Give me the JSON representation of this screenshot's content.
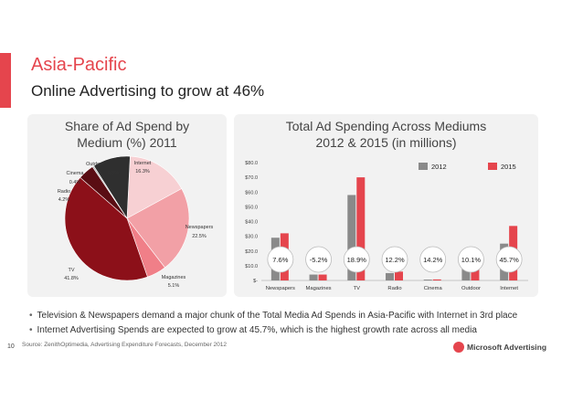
{
  "header": {
    "title": "Asia-Pacific",
    "subtitle": "Online Advertising to grow at 46%"
  },
  "colors": {
    "accent": "#e5454d",
    "panel": "#f2f2f2"
  },
  "chart_data": [
    {
      "type": "pie",
      "title_line1": "Share of Ad Spend by",
      "title_line2": "Medium (%) 2011",
      "slices": [
        {
          "label": "Internet",
          "value": 16.3,
          "value_label": "16.3%",
          "color": "#f7d0d3"
        },
        {
          "label": "Newspapers",
          "value": 22.5,
          "value_label": "22.5%",
          "color": "#f2a0a6"
        },
        {
          "label": "Magazines",
          "value": 5.1,
          "value_label": "5.1%",
          "color": "#f07f88"
        },
        {
          "label": "TV",
          "value": 41.8,
          "value_label": "41.8%",
          "color": "#8c1019"
        },
        {
          "label": "Radio",
          "value": 4.2,
          "value_label": "4.2%",
          "color": "#5a0d13"
        },
        {
          "label": "Cinema",
          "value": 0.4,
          "value_label": "0.4%",
          "color": "#b0b0b0"
        },
        {
          "label": "Outdoor",
          "value": 9.8,
          "value_label": "9.8%",
          "color": "#2f2f2f"
        }
      ]
    },
    {
      "type": "bar",
      "title_line1": "Total Ad Spending Across Mediums",
      "title_line2": "2012 & 2015 (in millions)",
      "categories": [
        "Newspapers",
        "Magazines",
        "TV",
        "Radio",
        "Cinema",
        "Outdoor",
        "Internet"
      ],
      "series": [
        {
          "name": "2012",
          "values": [
            29,
            4,
            58,
            5,
            0.6,
            10,
            25
          ],
          "color": "#8a8a8a"
        },
        {
          "name": "2015",
          "values": [
            32,
            4,
            70,
            6,
            0.7,
            11,
            37
          ],
          "color": "#e5454d"
        }
      ],
      "ylim": [
        0,
        80
      ],
      "yticks": [
        "$-",
        "$10.0",
        "$20.0",
        "$30.0",
        "$40.0",
        "$50.0",
        "$60.0",
        "$70.0",
        "$80.0"
      ],
      "growth_labels": [
        "7.6%",
        "-5.2%",
        "18.9%",
        "12.2%",
        "14.2%",
        "10.1%",
        "45.7%"
      ],
      "legend_position": "top-right"
    }
  ],
  "bullets": [
    "Television & Newspapers demand a major chunk of the Total Media Ad Spends in Asia-Pacific with Internet in 3rd place",
    "Internet Advertising Spends are expected to grow at 45.7%, which is the highest growth rate across all media"
  ],
  "footer": {
    "page_number": "10",
    "source": "Source: ZenithOptimedia, Advertising Expenditure Forecasts, December 2012",
    "logo_text": "Microsoft Advertising"
  }
}
